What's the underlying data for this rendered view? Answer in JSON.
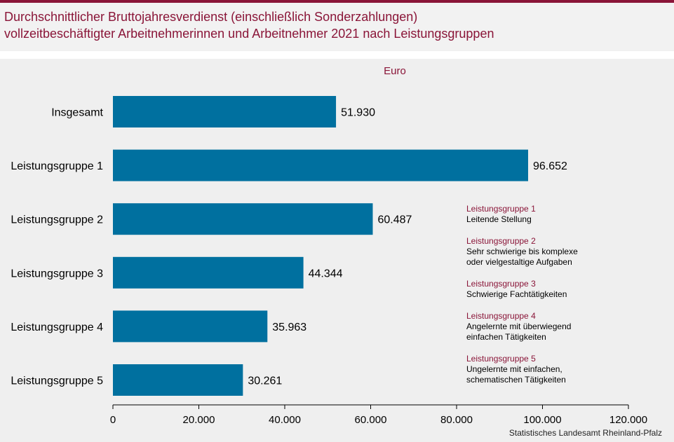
{
  "title": {
    "line1": "Durchschnittlicher Bruttojahresverdienst (einschließlich Sonderzahlungen)",
    "line2": "vollzeitbeschäftigter Arbeitnehmerinnen und Arbeitnehmer 2021 nach Leistungsgruppen"
  },
  "colors": {
    "accent": "#8a1538",
    "bar": "#00709f"
  },
  "chart_data": {
    "type": "bar",
    "orientation": "horizontal",
    "unit_label": "Euro",
    "categories": [
      "Insgesamt",
      "Leistungsgruppe 1",
      "Leistungsgruppe 2",
      "Leistungsgruppe 3",
      "Leistungsgruppe 4",
      "Leistungsgruppe 5"
    ],
    "values": [
      51930,
      96652,
      60487,
      44344,
      35963,
      30261
    ],
    "value_labels": [
      "51.930",
      "96.652",
      "60.487",
      "44.344",
      "35.963",
      "30.261"
    ],
    "xlim": [
      0,
      120000
    ],
    "xticks": [
      0,
      20000,
      40000,
      60000,
      80000,
      100000,
      120000
    ],
    "xtick_labels": [
      "0",
      "20.000",
      "40.000",
      "60.000",
      "80.000",
      "100.000",
      "120.000"
    ],
    "grid": false
  },
  "legend": [
    {
      "head": "Leistungsgruppe  1",
      "desc": "Leitende  Stellung"
    },
    {
      "head": "Leistungsgruppe  2",
      "desc": "Sehr  schwierige  bis komplexe\noder vielgestaltige  Aufgaben"
    },
    {
      "head": "Leistungsgruppe  3",
      "desc": "Schwierige  Fachtätigkeiten"
    },
    {
      "head": "Leistungsgruppe  4",
      "desc": "Angelernte  mit überwiegend\neinfachen  Tätigkeiten"
    },
    {
      "head": "Leistungsgruppe  5",
      "desc": "Ungelernte  mit einfachen,\nschematischen Tätigkeiten"
    }
  ],
  "source": "Statistisches Landesamt  Rheinland-Pfalz"
}
